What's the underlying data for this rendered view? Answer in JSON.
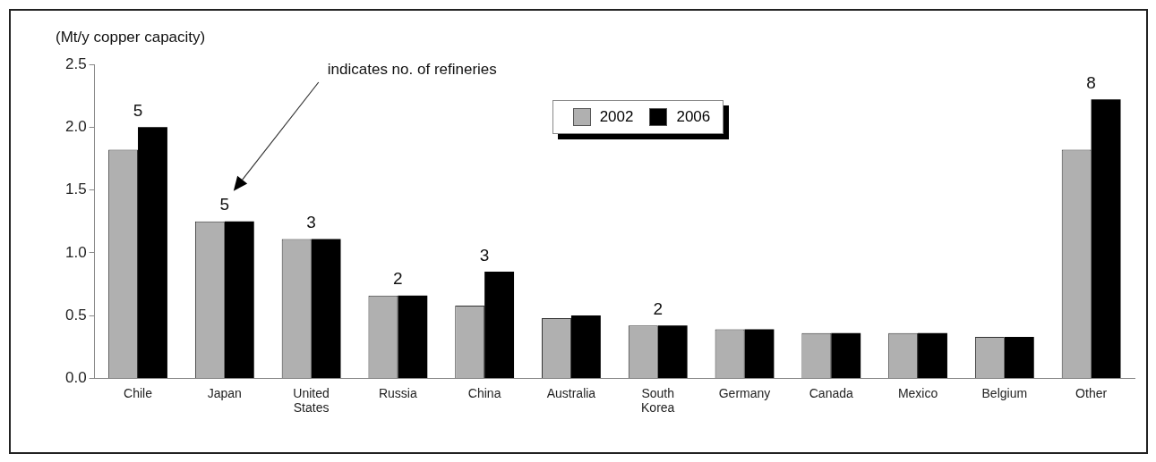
{
  "chart_data": {
    "type": "bar",
    "ylabel": "(Mt/y copper capacity)",
    "categories": [
      "Chile",
      "Japan",
      "United States",
      "Russia",
      "China",
      "Australia",
      "South Korea",
      "Germany",
      "Canada",
      "Mexico",
      "Belgium",
      "Other"
    ],
    "series": [
      {
        "name": "2002",
        "color": "#b0b0b0",
        "values": [
          1.82,
          1.25,
          1.11,
          0.66,
          0.58,
          0.48,
          0.42,
          0.39,
          0.36,
          0.36,
          0.33,
          1.82
        ]
      },
      {
        "name": "2006",
        "color": "#000000",
        "values": [
          2.0,
          1.25,
          1.11,
          0.66,
          0.85,
          0.5,
          0.42,
          0.39,
          0.36,
          0.36,
          0.33,
          2.22
        ]
      }
    ],
    "ylim": [
      0,
      2.5
    ],
    "yticks": [
      {
        "value": 0,
        "label": "0.0"
      },
      0.5,
      {
        "value": 1,
        "label": "1.0"
      },
      1.5,
      {
        "value": 2,
        "label": "2.0"
      },
      2.5
    ],
    "grid": false,
    "legend": "top right",
    "annotations": [
      "indicates no. of refineries",
      {
        "text": "5",
        "x": "Chile",
        "y": 2.0
      },
      {
        "text": "5",
        "x": "Japan",
        "y": 1.25
      },
      {
        "text": "3",
        "x": "United States",
        "y": 1.11
      },
      {
        "text": "2",
        "x": "Russia",
        "y": 0.66
      },
      {
        "text": "3",
        "x": "China",
        "y": 0.85
      },
      {
        "text": "2",
        "x": "South Korea",
        "y": 0.42
      },
      {
        "text": "8",
        "x": "Other",
        "y": 2.22
      }
    ]
  }
}
